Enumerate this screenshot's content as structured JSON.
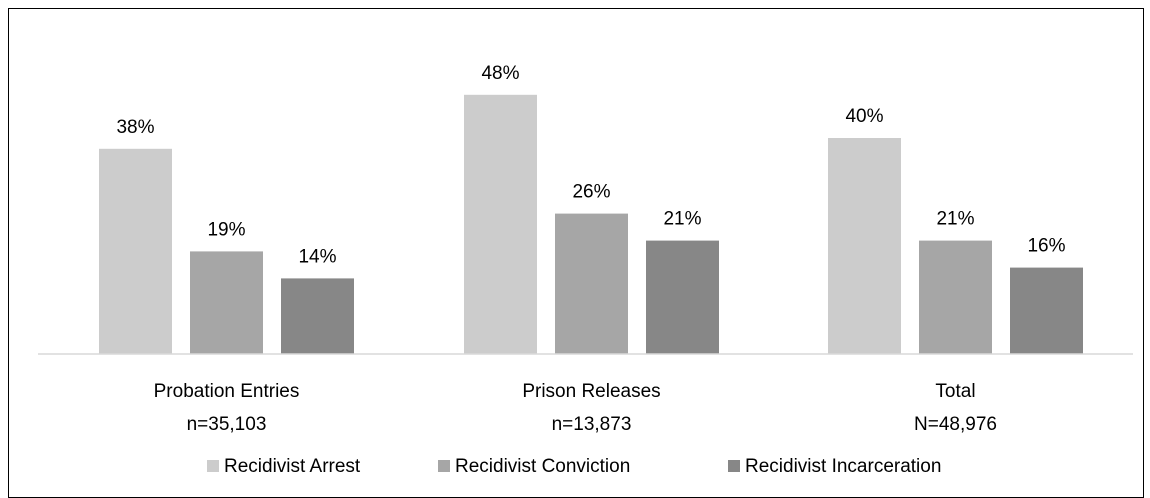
{
  "chart_data": {
    "type": "bar",
    "categories": [
      "Probation Entries",
      "Prison Releases",
      "Total"
    ],
    "category_counts": [
      "n=35,103",
      "n=13,873",
      "N=48,976"
    ],
    "series": [
      {
        "name": "Recidivist Arrest",
        "values": [
          38,
          48,
          40
        ],
        "labels": [
          "38%",
          "48%",
          "40%"
        ],
        "color": "#cccccc"
      },
      {
        "name": "Recidivist Conviction",
        "values": [
          19,
          26,
          21
        ],
        "labels": [
          "19%",
          "26%",
          "21%"
        ],
        "color": "#a6a6a6"
      },
      {
        "name": "Recidivist Incarceration",
        "values": [
          14,
          21,
          16
        ],
        "labels": [
          "14%",
          "21%",
          "16%"
        ],
        "color": "#878787"
      }
    ],
    "title": "",
    "xlabel": "",
    "ylabel": "",
    "ylim": [
      0,
      52
    ],
    "grid": false,
    "legend": "bottom"
  }
}
